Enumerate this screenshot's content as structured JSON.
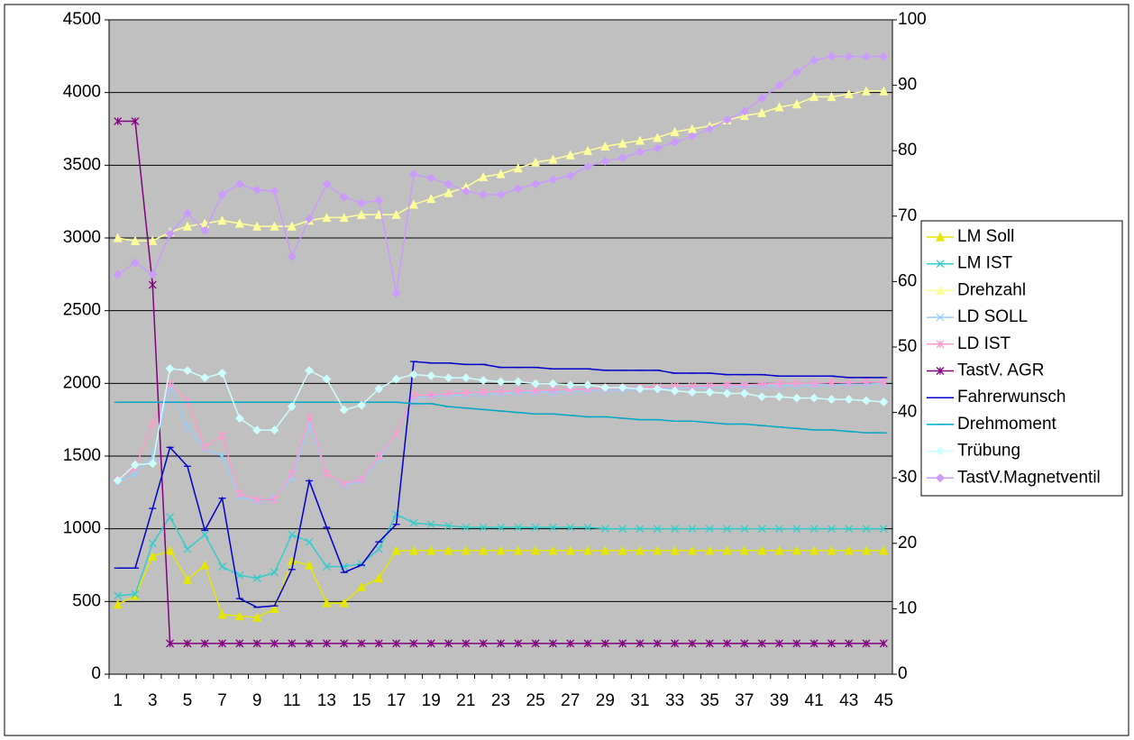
{
  "chart_data": {
    "type": "line",
    "categories": [
      1,
      null,
      3,
      null,
      5,
      null,
      7,
      null,
      9,
      null,
      11,
      null,
      13,
      null,
      15,
      null,
      17,
      null,
      19,
      null,
      21,
      null,
      23,
      null,
      25,
      null,
      27,
      null,
      29,
      null,
      31,
      null,
      33,
      null,
      35,
      null,
      37,
      null,
      39,
      null,
      41,
      null,
      43,
      null,
      45
    ],
    "ylim": [
      0,
      4500
    ],
    "yticks": [
      0,
      500,
      1000,
      1500,
      2000,
      2500,
      3000,
      3500,
      4000,
      4500
    ],
    "y2lim": [
      0,
      100
    ],
    "y2ticks": [
      0,
      10,
      20,
      30,
      40,
      50,
      60,
      70,
      80,
      90,
      100
    ],
    "grid": true,
    "legend": "right",
    "series": [
      {
        "name": "LM Soll",
        "color": "#e6e600",
        "marker": "triangle",
        "values": [
          480,
          540,
          810,
          850,
          650,
          750,
          410,
          400,
          390,
          450,
          780,
          750,
          490,
          490,
          600,
          660,
          850,
          850,
          850,
          850,
          850,
          850,
          850,
          850,
          850,
          850,
          850,
          850,
          850,
          850,
          850,
          850,
          850,
          850,
          850,
          850,
          850,
          850,
          850,
          850,
          850,
          850,
          850,
          850,
          850
        ]
      },
      {
        "name": "LM IST",
        "color": "#33cccc",
        "marker": "x",
        "values": [
          540,
          550,
          900,
          1080,
          860,
          960,
          740,
          680,
          660,
          700,
          960,
          910,
          740,
          740,
          760,
          860,
          1100,
          1040,
          1030,
          1020,
          1010,
          1010,
          1010,
          1010,
          1010,
          1010,
          1010,
          1010,
          1000,
          1000,
          1000,
          1000,
          1000,
          1000,
          1000,
          1000,
          1000,
          1000,
          1000,
          1000,
          1000,
          1000,
          1000,
          1000,
          1000
        ]
      },
      {
        "name": "Drehzahl",
        "color": "#ffff99",
        "marker": "triangle",
        "values": [
          3000,
          2980,
          2980,
          3040,
          3080,
          3100,
          3120,
          3100,
          3080,
          3080,
          3080,
          3120,
          3140,
          3140,
          3160,
          3160,
          3160,
          3230,
          3270,
          3310,
          3350,
          3420,
          3440,
          3480,
          3520,
          3540,
          3570,
          3600,
          3630,
          3650,
          3670,
          3690,
          3730,
          3750,
          3770,
          3810,
          3840,
          3860,
          3900,
          3920,
          3970,
          3970,
          3990,
          4010,
          4010
        ]
      },
      {
        "name": "LD SOLL",
        "color": "#99ccff",
        "marker": "x",
        "values": [
          1320,
          1380,
          1500,
          1980,
          1700,
          1550,
          1500,
          1220,
          1190,
          1210,
          1350,
          1720,
          1380,
          1300,
          1330,
          1480,
          1650,
          1900,
          1910,
          1915,
          1920,
          1925,
          1930,
          1935,
          1940,
          1940,
          1945,
          1950,
          1950,
          1955,
          1960,
          1960,
          1965,
          1970,
          1970,
          1975,
          1980,
          1980,
          1985,
          1985,
          1990,
          1990,
          1995,
          1995,
          2000
        ]
      },
      {
        "name": "LD IST",
        "color": "#ff99cc",
        "marker": "star",
        "values": [
          1340,
          1420,
          1720,
          2000,
          1880,
          1560,
          1640,
          1240,
          1200,
          1200,
          1380,
          1770,
          1380,
          1310,
          1340,
          1500,
          1650,
          1920,
          1920,
          1930,
          1935,
          1940,
          1945,
          1950,
          1950,
          1955,
          1960,
          1960,
          1965,
          1970,
          1970,
          1975,
          1980,
          1980,
          1985,
          1990,
          1990,
          1995,
          2000,
          2000,
          2000,
          2005,
          2005,
          2010,
          2010
        ]
      },
      {
        "name": "TastV. AGR",
        "color": "#800080",
        "marker": "star",
        "axis": "y2",
        "values": [
          84.5,
          84.5,
          59.5,
          4.7,
          4.7,
          4.7,
          4.7,
          4.7,
          4.7,
          4.7,
          4.7,
          4.7,
          4.7,
          4.7,
          4.7,
          4.7,
          4.7,
          4.7,
          4.7,
          4.7,
          4.7,
          4.7,
          4.7,
          4.7,
          4.7,
          4.7,
          4.7,
          4.7,
          4.7,
          4.7,
          4.7,
          4.7,
          4.7,
          4.7,
          4.7,
          4.7,
          4.7,
          4.7,
          4.7,
          4.7,
          4.7,
          4.7,
          4.7,
          4.7,
          4.7
        ]
      },
      {
        "name": "Fahrerwunsch",
        "color": "#0000cc",
        "marker": "dash",
        "values": [
          730,
          730,
          1140,
          1560,
          1430,
          990,
          1210,
          520,
          460,
          470,
          720,
          1330,
          1010,
          700,
          750,
          910,
          1030,
          2150,
          2140,
          2140,
          2130,
          2130,
          2110,
          2110,
          2110,
          2100,
          2100,
          2100,
          2090,
          2090,
          2090,
          2090,
          2070,
          2070,
          2070,
          2060,
          2060,
          2060,
          2050,
          2050,
          2050,
          2050,
          2040,
          2040,
          2040
        ]
      },
      {
        "name": "Drehmoment",
        "color": "#00a8c8",
        "marker": "dash",
        "values": [
          1870,
          1870,
          1870,
          1870,
          1870,
          1870,
          1870,
          1870,
          1870,
          1870,
          1870,
          1870,
          1870,
          1870,
          1870,
          1870,
          1870,
          1860,
          1860,
          1840,
          1830,
          1820,
          1810,
          1800,
          1790,
          1790,
          1780,
          1770,
          1770,
          1760,
          1750,
          1750,
          1740,
          1740,
          1730,
          1720,
          1720,
          1710,
          1700,
          1690,
          1680,
          1680,
          1670,
          1660,
          1660
        ]
      },
      {
        "name": "Trübung",
        "color": "#ccffff",
        "marker": "diamond",
        "axis": "y2",
        "values": [
          29.6,
          32,
          32.2,
          46.7,
          46.4,
          45.3,
          46,
          39.1,
          37.3,
          37.3,
          40.9,
          46.4,
          45.1,
          40.4,
          41.1,
          43.6,
          45.1,
          45.8,
          45.6,
          45.3,
          45.3,
          44.9,
          44.7,
          44.7,
          44.4,
          44.4,
          44.2,
          44.2,
          43.8,
          43.8,
          43.6,
          43.6,
          43.3,
          43.1,
          43.1,
          42.9,
          42.9,
          42.4,
          42.4,
          42.2,
          42.2,
          42,
          42,
          41.8,
          41.6
        ]
      },
      {
        "name": "TastV.Magnetventil",
        "color": "#cc99ff",
        "marker": "diamond",
        "axis": "y2",
        "values": [
          61.1,
          62.9,
          61.1,
          67.3,
          70.4,
          67.8,
          73.3,
          74.9,
          74,
          73.8,
          63.8,
          69.6,
          74.9,
          72.9,
          72,
          72.4,
          58.2,
          76.4,
          75.8,
          74.9,
          73.8,
          73.3,
          73.3,
          74.2,
          74.9,
          75.6,
          76.2,
          77.6,
          78.4,
          78.9,
          79.8,
          80.4,
          81.3,
          82.2,
          83.3,
          84.7,
          86,
          88,
          90,
          92,
          93.8,
          94.4,
          94.4,
          94.4,
          94.4
        ]
      }
    ]
  }
}
